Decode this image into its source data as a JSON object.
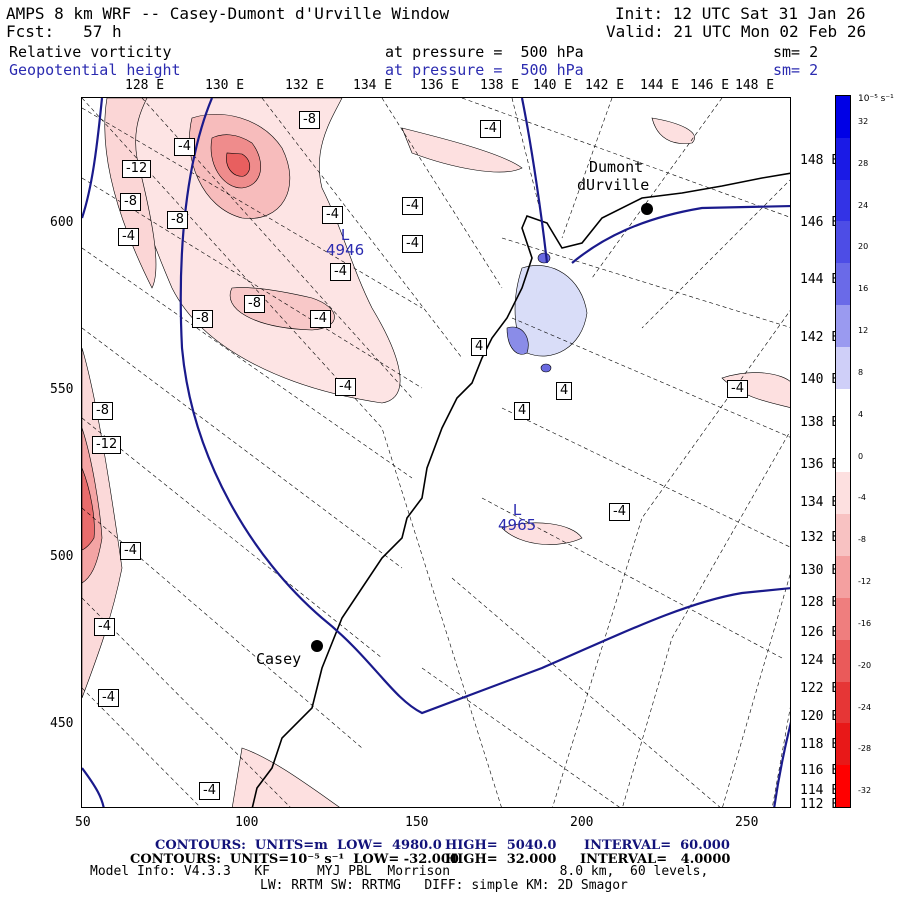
{
  "header": {
    "line1_left": "AMPS 8 km WRF -- Casey-Dumont d'Urville Window",
    "line1_right": "Init: 12 UTC Sat 31 Jan 26",
    "line2_left": "Fcst:   57 h",
    "line2_right": "Valid: 21 UTC Mon 02 Feb 26",
    "field1_name": "Relative vorticity",
    "field1_level": "at pressure =  500 hPa",
    "field1_sm": "sm= 2",
    "field2_name": "Geopotential height",
    "field2_level": "at pressure =  500 hPa",
    "field2_sm": "sm= 2"
  },
  "axes": {
    "top_lon_labels": [
      "128 E",
      "130 E",
      "132 E",
      "134 E",
      "136 E",
      "138 E",
      "140 E",
      "142 E",
      "144 E",
      "146 E",
      "148 E"
    ],
    "right_lat_labels": [
      "148 E",
      "146 E",
      "144 E",
      "142 E",
      "140 E",
      "138 E",
      "136 E",
      "134 E",
      "132 E",
      "130 E",
      "128 E",
      "126 E",
      "124 E",
      "122 E",
      "120 E",
      "118 E",
      "116 E",
      "114 E",
      "112 E"
    ],
    "left_y_labels": [
      "600",
      "550",
      "500",
      "450"
    ],
    "bottom_x_labels": [
      "50",
      "100",
      "150",
      "200",
      "250"
    ]
  },
  "map": {
    "stations": [
      {
        "name_line1": "Dumont",
        "name_line2": "dUrville"
      },
      {
        "name_line1": "Casey",
        "name_line2": ""
      }
    ],
    "lows": [
      {
        "letter": "L",
        "value": "4946"
      },
      {
        "letter": "L",
        "value": "4965"
      }
    ],
    "contour_labels": [
      "-8",
      "-4",
      "-12",
      "-8",
      "-4",
      "-8",
      "-4",
      "-4",
      "-4",
      "-8",
      "-8",
      "-4",
      "-4",
      "-4",
      "4",
      "-4",
      "4",
      "4",
      "-8",
      "-12",
      "-4",
      "-4",
      "-4",
      "-4",
      "-4",
      "-4"
    ]
  },
  "colorbar": {
    "unit": "10⁻⁵ s⁻¹",
    "labels": [
      "32",
      "28",
      "24",
      "20",
      "16",
      "12",
      "8",
      "4",
      "0",
      "-4",
      "-8",
      "-12",
      "-16",
      "-20",
      "-24",
      "-28",
      "-32"
    ],
    "colors": [
      "#0000e6",
      "#1a1ae6",
      "#3333e6",
      "#4d4de6",
      "#6a6ae8",
      "#9a9af0",
      "#cfcff8",
      "#ffffff",
      "#ffffff",
      "#fde0e0",
      "#f8c2c2",
      "#f4a0a0",
      "#ef7e7e",
      "#ea5a5a",
      "#e63636",
      "#e81818",
      "#ff0000"
    ]
  },
  "footer": {
    "line1_a": "CONTOURS:  UNITS=m  LOW=  4980.0",
    "line1_b": "HIGH=  5040.0",
    "line1_c": "INTERVAL=  60.000",
    "line2_a": "CONTOURS:  UNITS=10⁻⁵ s⁻¹  LOW= -32.000",
    "line2_b": "HIGH=  32.000",
    "line2_c": "INTERVAL=   4.0000",
    "line3": "Model Info: V4.3.3   KF      MYJ PBL  Morrison              8.0 km,  60 levels,",
    "line4": "LW: RRTM SW: RRTMG   DIFF: simple KM: 2D Smagor"
  }
}
